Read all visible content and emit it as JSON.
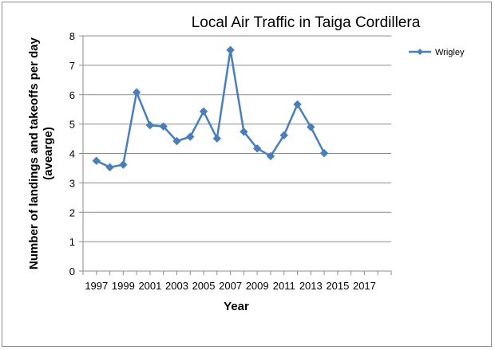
{
  "chart_data": {
    "type": "line",
    "title": "Local Air Traffic in Taiga Cordillera",
    "xlabel": "Year",
    "ylabel": "Number of landings and takeoffs per day (avearge)",
    "xlim": [
      1996,
      2019
    ],
    "ylim": [
      0,
      8
    ],
    "x_ticks": [
      1997,
      1999,
      2001,
      2003,
      2005,
      2007,
      2009,
      2011,
      2013,
      2015,
      2017
    ],
    "y_ticks": [
      0,
      1,
      2,
      3,
      4,
      5,
      6,
      7,
      8
    ],
    "grid": "horizontal",
    "legend_position": "right",
    "series": [
      {
        "name": "Wrigley",
        "color": "#4a7ebb",
        "marker": "diamond",
        "x": [
          1997,
          1998,
          1999,
          2000,
          2001,
          2002,
          2003,
          2004,
          2005,
          2006,
          2007,
          2008,
          2009,
          2010,
          2011,
          2012,
          2013,
          2014
        ],
        "y": [
          3.75,
          3.53,
          3.62,
          6.08,
          4.96,
          4.92,
          4.42,
          4.57,
          5.43,
          4.51,
          7.52,
          4.74,
          4.17,
          3.91,
          4.62,
          5.67,
          4.9,
          4.01
        ]
      }
    ]
  }
}
